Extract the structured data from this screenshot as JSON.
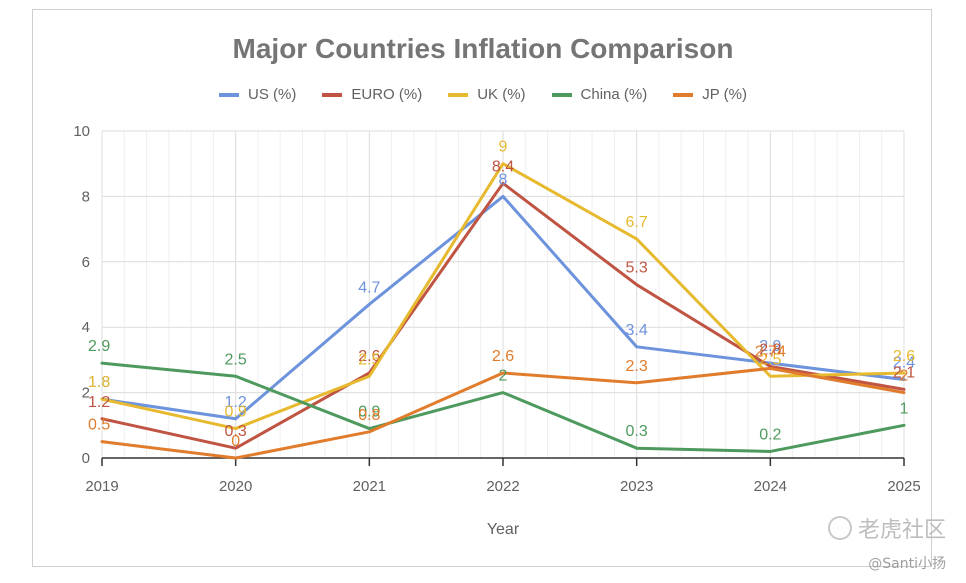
{
  "chart_data": {
    "type": "line",
    "title": "Major Countries Inflation Comparison",
    "xlabel": "Year",
    "ylabel": "",
    "x": [
      "2019",
      "2020",
      "2021",
      "2022",
      "2023",
      "2024",
      "2025"
    ],
    "ylim": [
      0,
      10
    ],
    "yticks": [
      "0",
      "2",
      "4",
      "6",
      "8",
      "10"
    ],
    "grid": true,
    "legend_position": "top",
    "series": [
      {
        "name": "US (%)",
        "color": "#6d93dc",
        "values": [
          1.8,
          1.2,
          4.7,
          8,
          3.4,
          2.9,
          2.4
        ],
        "labels": [
          "1.8",
          "1.2",
          "4.7",
          "8",
          "3.4",
          "2.9",
          "2.4"
        ]
      },
      {
        "name": "EURO (%)",
        "color": "#bf5443",
        "values": [
          1.2,
          0.3,
          2.6,
          8.4,
          5.3,
          2.8,
          2.1
        ],
        "labels": [
          "1.2",
          "0.3",
          "2.6",
          "8.4",
          "5.3",
          "2.8",
          "2.1"
        ]
      },
      {
        "name": "UK (%)",
        "color": "#e6b92e",
        "values": [
          1.8,
          0.9,
          2.5,
          9.0,
          6.7,
          2.5,
          2.6
        ],
        "labels": [
          "1.8",
          "0.9",
          "2.5",
          "9",
          "6.7",
          "2.5",
          "2.6"
        ]
      },
      {
        "name": "China (%)",
        "color": "#4e9a5e",
        "values": [
          2.9,
          2.5,
          0.9,
          2,
          0.3,
          0.2,
          1
        ],
        "labels": [
          "2.9",
          "2.5",
          "0.9",
          "2",
          "0.3",
          "0.2",
          "1"
        ]
      },
      {
        "name": "JP (%)",
        "color": "#e07c2c",
        "values": [
          0.5,
          0,
          0.8,
          2.6,
          2.3,
          2.74,
          2
        ],
        "labels": [
          "0.5",
          "0",
          "0.8",
          "2.6",
          "2.3",
          "2.74",
          "2"
        ]
      }
    ]
  },
  "watermark": {
    "text": "老虎社区",
    "credit": "@Santi小扬"
  }
}
